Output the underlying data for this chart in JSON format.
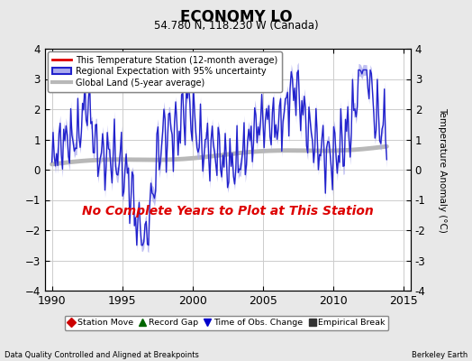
{
  "title": "ECONOMY LO",
  "subtitle": "54.780 N, 118.230 W (Canada)",
  "ylabel": "Temperature Anomaly (°C)",
  "xlabel_left": "Data Quality Controlled and Aligned at Breakpoints",
  "xlabel_right": "Berkeley Earth",
  "no_data_text": "No Complete Years to Plot at This Station",
  "xlim": [
    1989.5,
    2015.5
  ],
  "ylim": [
    -4,
    4
  ],
  "yticks": [
    -4,
    -3,
    -2,
    -1,
    0,
    1,
    2,
    3,
    4
  ],
  "xticks": [
    1990,
    1995,
    2000,
    2005,
    2010,
    2015
  ],
  "bg_color": "#e8e8e8",
  "plot_bg_color": "#ffffff",
  "regional_color": "#2222cc",
  "regional_fill_color": "#aaaaee",
  "station_color": "#dd0000",
  "global_color": "#b8b8b8",
  "no_data_color": "#dd0000",
  "grid_color": "#cccccc",
  "legend_item0": "This Temperature Station (12-month average)",
  "legend_item1": "Regional Expectation with 95% uncertainty",
  "legend_item2": "Global Land (5-year average)",
  "bottom_legend": [
    {
      "label": "Station Move",
      "color": "#cc0000",
      "marker": "D"
    },
    {
      "label": "Record Gap",
      "color": "#006600",
      "marker": "^"
    },
    {
      "label": "Time of Obs. Change",
      "color": "#0000cc",
      "marker": "v"
    },
    {
      "label": "Empirical Break",
      "color": "#333333",
      "marker": "s"
    }
  ]
}
